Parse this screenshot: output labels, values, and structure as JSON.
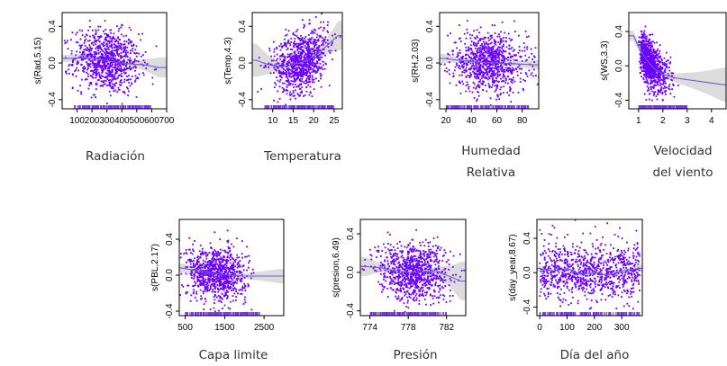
{
  "chart_data": [
    {
      "type": "scatter",
      "ylabel": "s(Rad,5.15)",
      "caption": [
        "Radiación"
      ],
      "xlim": [
        0,
        700
      ],
      "ylim": [
        -0.5,
        0.55
      ],
      "xticks": [
        100,
        300,
        500,
        700
      ],
      "xtick_labels": [
        "100",
        "300",
        "500",
        "700"
      ],
      "minor_xticks": [
        200,
        400,
        600
      ],
      "minor_xtick_labels": [
        "200",
        "400",
        "600"
      ],
      "yticks": [
        -0.4,
        0.0,
        0.4
      ],
      "ytick_labels": [
        "-0.4",
        "0.0",
        "0.4"
      ],
      "rug_range": [
        80,
        600
      ],
      "smooth": {
        "x": [
          50,
          150,
          250,
          350,
          450,
          550,
          650
        ],
        "y": [
          0.05,
          0.06,
          0.04,
          0.01,
          -0.01,
          -0.02,
          -0.05
        ],
        "band": [
          0.04,
          0.03,
          0.02,
          0.02,
          0.03,
          0.06,
          0.11
        ]
      },
      "scatter": {
        "n": 900,
        "xcenter": 300,
        "xspread": 110,
        "ysd": 0.17,
        "slope": -0.0001
      }
    },
    {
      "type": "scatter",
      "ylabel": "s(Temp,4.3)",
      "caption": [
        "Temperatura"
      ],
      "xlim": [
        5,
        27
      ],
      "ylim": [
        -0.5,
        0.55
      ],
      "xticks": [
        10,
        15,
        20,
        25
      ],
      "xtick_labels": [
        "10",
        "15",
        "20",
        "25"
      ],
      "yticks": [
        -0.4,
        0.0,
        0.4
      ],
      "ytick_labels": [
        "-0.4",
        "0.0",
        "0.4"
      ],
      "rug_range": [
        8,
        25
      ],
      "smooth": {
        "x": [
          6,
          9,
          12,
          15,
          18,
          21,
          24,
          26
        ],
        "y": [
          0.03,
          -0.02,
          -0.04,
          -0.02,
          0.02,
          0.1,
          0.22,
          0.3
        ],
        "band": [
          0.18,
          0.1,
          0.05,
          0.02,
          0.02,
          0.05,
          0.1,
          0.16
        ]
      },
      "scatter": {
        "n": 900,
        "xcenter": 17,
        "xspread": 3.3,
        "ysd": 0.16,
        "slope": 0.012
      }
    },
    {
      "type": "scatter",
      "ylabel": "s(RH,2.03)",
      "caption": [
        "Humedad",
        "Relativa"
      ],
      "xlim": [
        15,
        93
      ],
      "ylim": [
        -0.5,
        0.55
      ],
      "xticks": [
        20,
        40,
        60,
        80
      ],
      "xtick_labels": [
        "20",
        "40",
        "60",
        "80"
      ],
      "yticks": [
        -0.4,
        0.0,
        0.4
      ],
      "ytick_labels": [
        "-0.4",
        "0.0",
        "0.4"
      ],
      "rug_range": [
        20,
        85
      ],
      "smooth": {
        "x": [
          18,
          30,
          45,
          60,
          75,
          90
        ],
        "y": [
          0.05,
          0.03,
          0.01,
          0.0,
          -0.01,
          -0.02
        ],
        "band": [
          0.05,
          0.03,
          0.02,
          0.02,
          0.03,
          0.05
        ]
      },
      "scatter": {
        "n": 900,
        "xcenter": 54,
        "xspread": 15,
        "ysd": 0.16,
        "slope": -0.0008
      }
    },
    {
      "type": "scatter",
      "ylabel": "s(WS,3.3)",
      "caption": [
        "Velocidad",
        "del viento"
      ],
      "xlim": [
        0.6,
        4.6
      ],
      "ylim": [
        -0.5,
        0.62
      ],
      "xticks": [
        1,
        2,
        3,
        4
      ],
      "xtick_labels": [
        "1",
        "2",
        "3",
        "4"
      ],
      "yticks": [
        -0.4,
        0.0,
        0.4
      ],
      "ytick_labels": [
        "-0.4",
        "0.0",
        "0.4"
      ],
      "rug_range": [
        1.0,
        3.0
      ],
      "smooth": {
        "x": [
          0.8,
          1.0,
          1.3,
          1.6,
          2.0,
          2.5,
          3.0,
          3.5,
          4.0,
          4.5
        ],
        "y": [
          0.35,
          0.22,
          0.08,
          -0.02,
          -0.1,
          -0.14,
          -0.16,
          -0.18,
          -0.2,
          -0.22
        ],
        "band": [
          0.06,
          0.04,
          0.02,
          0.02,
          0.03,
          0.05,
          0.08,
          0.11,
          0.15,
          0.2
        ]
      },
      "scatter": {
        "n": 900,
        "xcenter": 1.55,
        "xspread": 0.35,
        "ysd": 0.13,
        "slope": 0,
        "curve": true
      }
    },
    {
      "type": "scatter",
      "ylabel": "s(PBL,2.17)",
      "caption": [
        "Capa limite"
      ],
      "xlim": [
        350,
        3000
      ],
      "ylim": [
        -0.45,
        0.62
      ],
      "xticks": [
        500,
        1500,
        2500
      ],
      "xtick_labels": [
        "500",
        "1500",
        "2500"
      ],
      "yticks": [
        -0.4,
        0.0,
        0.4
      ],
      "ytick_labels": [
        "-0.4",
        "0.0",
        "0.4"
      ],
      "rug_range": [
        500,
        2400
      ],
      "smooth": {
        "x": [
          400,
          800,
          1200,
          1600,
          2000,
          2400,
          2900
        ],
        "y": [
          0.08,
          0.05,
          0.02,
          0.0,
          -0.01,
          -0.01,
          -0.01
        ],
        "band": [
          0.05,
          0.03,
          0.02,
          0.02,
          0.03,
          0.05,
          0.08
        ]
      },
      "scatter": {
        "n": 900,
        "xcenter": 1300,
        "xspread": 380,
        "ysd": 0.15,
        "slope": -4e-05
      }
    },
    {
      "type": "scatter",
      "ylabel": "s(presion,6.49)",
      "caption": [
        "Presión"
      ],
      "xlim": [
        773,
        784
      ],
      "ylim": [
        -0.45,
        0.55
      ],
      "xticks": [
        774,
        778,
        782
      ],
      "xtick_labels": [
        "774",
        "778",
        "782"
      ],
      "yticks": [
        -0.4,
        0.0,
        0.4
      ],
      "ytick_labels": [
        "-0.4",
        "0.0",
        "0.4"
      ],
      "rug_range": [
        774,
        782
      ],
      "smooth": {
        "x": [
          773.5,
          775,
          776.5,
          778,
          779.5,
          781,
          782.5,
          783.5
        ],
        "y": [
          0.06,
          0.05,
          0.02,
          0.0,
          0.0,
          0.01,
          -0.05,
          -0.09
        ],
        "band": [
          0.1,
          0.05,
          0.03,
          0.02,
          0.03,
          0.05,
          0.12,
          0.2
        ]
      },
      "scatter": {
        "n": 900,
        "xcenter": 778.5,
        "xspread": 1.8,
        "ysd": 0.15,
        "slope": -0.005
      }
    },
    {
      "type": "scatter",
      "ylabel": "s(day_year,8.67)",
      "caption": [
        "Día del año"
      ],
      "xlim": [
        -10,
        375
      ],
      "ylim": [
        -0.5,
        0.62
      ],
      "xticks": [
        0,
        100,
        300
      ],
      "xtick_labels": [
        "0",
        "100",
        "300"
      ],
      "minor_xticks": [
        200
      ],
      "minor_xtick_labels": [
        "200"
      ],
      "yticks": [
        -0.4,
        0.0,
        0.4
      ],
      "ytick_labels": [
        "-0.4",
        "0.0",
        "0.4"
      ],
      "rug_range": [
        0,
        365
      ],
      "smooth": {
        "x": [
          0,
          50,
          100,
          150,
          200,
          250,
          300,
          365
        ],
        "y": [
          0.05,
          0.02,
          0.05,
          -0.02,
          0.0,
          -0.03,
          0.02,
          0.05
        ],
        "band": [
          0.03,
          0.02,
          0.02,
          0.02,
          0.02,
          0.02,
          0.02,
          0.04
        ]
      },
      "scatter": {
        "n": 900,
        "uniform": true,
        "ysd": 0.16,
        "slope": 0
      }
    }
  ],
  "colors": {
    "points": "#6a00ff",
    "rug": "#7b2bff",
    "smooth_line": "#6f5bd6",
    "band": "#d3d3d3",
    "axis": "#000000"
  }
}
